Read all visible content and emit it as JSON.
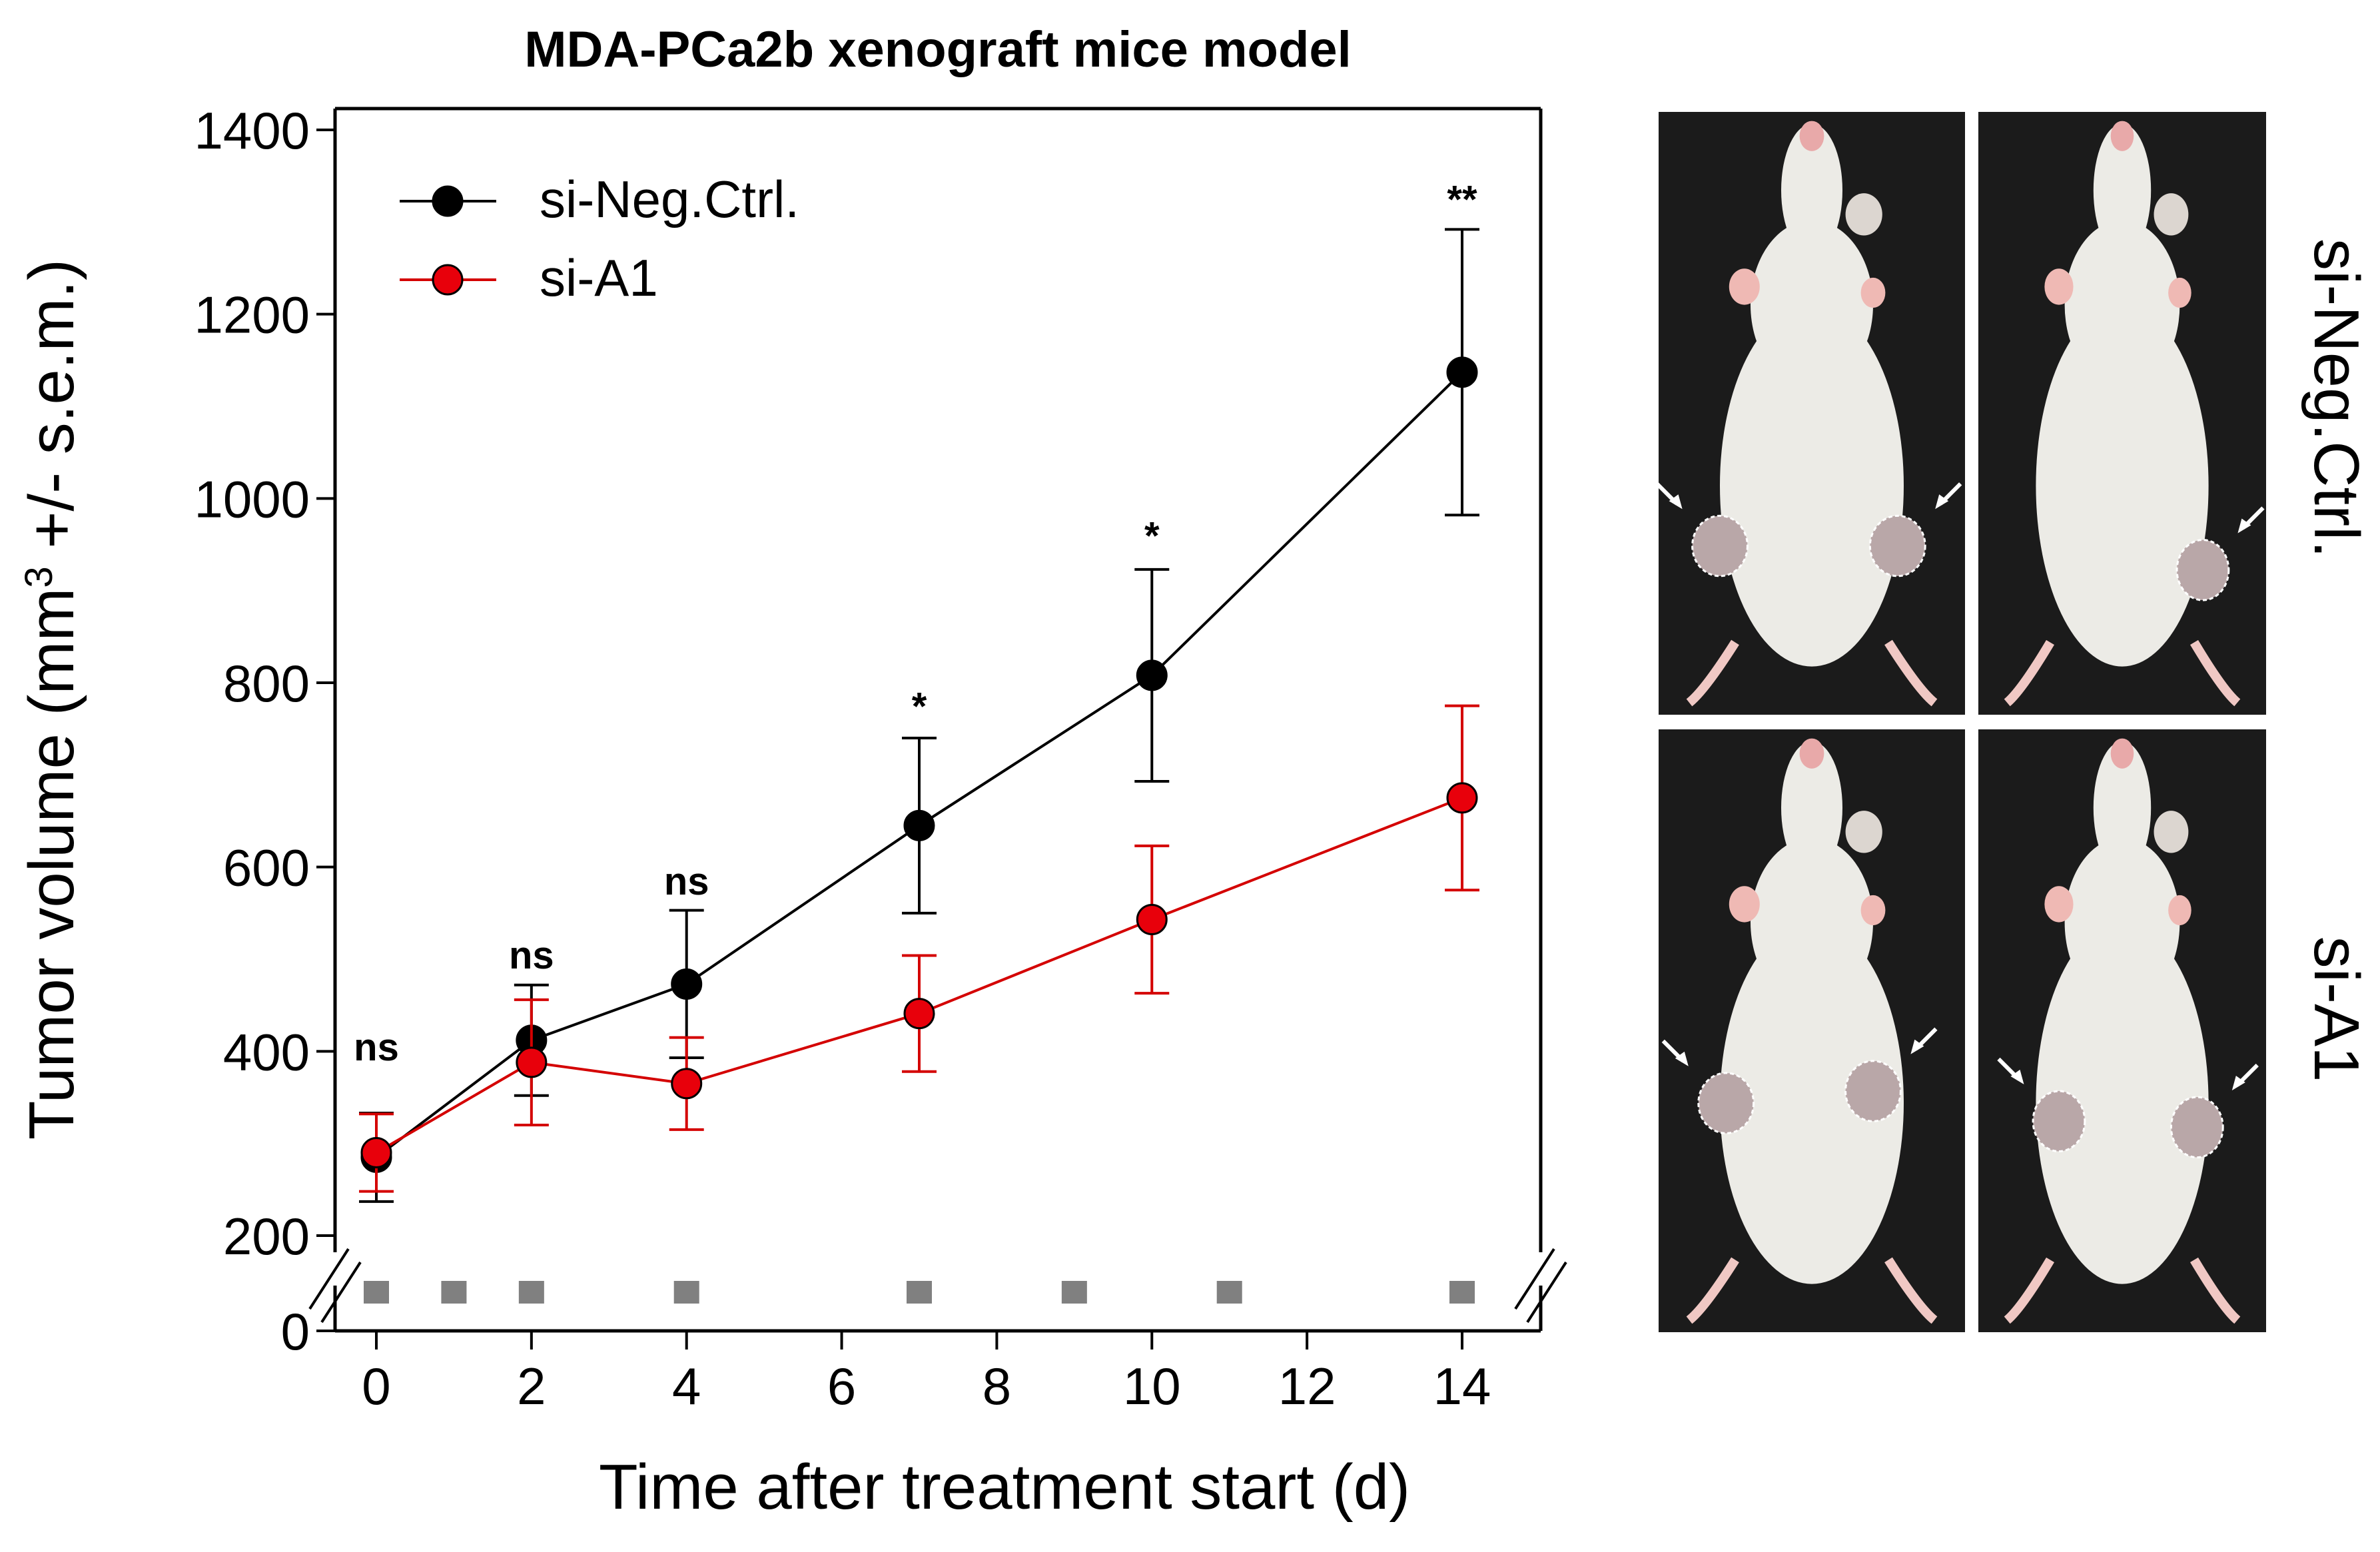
{
  "chart_data": {
    "type": "line",
    "title": "MDA-PCa2b xenograft mice model",
    "xlabel": "Time after treatment start (d)",
    "ylabel_parts": [
      "Tumor volume (mm",
      "3",
      " +/- s.e.m.)"
    ],
    "x_ticks": [
      0,
      2,
      4,
      6,
      8,
      10,
      12,
      14
    ],
    "y_ticks": [
      0,
      200,
      400,
      600,
      800,
      1000,
      1200,
      1400
    ],
    "xlim": [
      -0.5,
      15
    ],
    "ylim_upper": [
      200,
      1400
    ],
    "ylim_lower": [
      0
    ],
    "axis_break": true,
    "legend_position": "top-left",
    "series": [
      {
        "name": "si-Neg.Ctrl.",
        "color": "#000000",
        "marker_fill": "#000000",
        "x": [
          0,
          2,
          4,
          7,
          10,
          14
        ],
        "y": [
          285,
          412,
          473,
          645,
          808,
          1137
        ],
        "err_low": [
          48,
          60,
          80,
          95,
          115,
          155
        ],
        "err_high": [
          48,
          60,
          80,
          95,
          115,
          155
        ]
      },
      {
        "name": "si-A1",
        "color": "#d40000",
        "marker_fill": "#e8000b",
        "x": [
          0,
          2,
          4,
          7,
          10,
          14
        ],
        "y": [
          290,
          388,
          365,
          441,
          543,
          675
        ],
        "err_low": [
          42,
          68,
          50,
          63,
          80,
          100
        ],
        "err_high": [
          42,
          68,
          50,
          63,
          80,
          100
        ]
      }
    ],
    "significance": [
      {
        "x": 0,
        "y": 390,
        "label": "ns"
      },
      {
        "x": 2,
        "y": 490,
        "label": "ns"
      },
      {
        "x": 4,
        "y": 570,
        "label": "ns"
      },
      {
        "x": 7,
        "y": 760,
        "label": "*"
      },
      {
        "x": 10,
        "y": 945,
        "label": "*"
      },
      {
        "x": 14,
        "y": 1310,
        "label": "**"
      }
    ],
    "treatment_days": [
      0,
      1,
      2,
      4,
      7,
      9,
      11,
      14
    ],
    "treatment_marker_color": "#808080"
  },
  "photo_labels": {
    "top": "si-Neg.Ctrl.",
    "bottom": "si-A1"
  },
  "colors": {
    "photo_background": "#1b1b1b",
    "mouse_fur": "#ecebe6",
    "tumor_outline": "#ffffff"
  }
}
